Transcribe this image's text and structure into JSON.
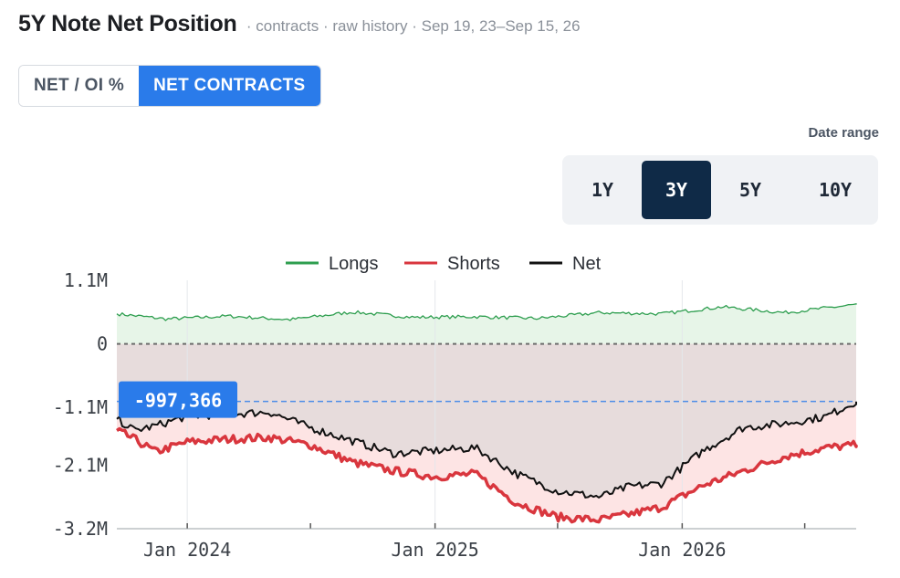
{
  "header": {
    "title": "5Y Note Net Position",
    "subtitle": "· contracts · raw history · Sep 19, 23–Sep 15, 26"
  },
  "view_toggle": {
    "options": [
      "NET / OI %",
      "NET CONTRACTS"
    ],
    "active": "NET CONTRACTS"
  },
  "date_range": {
    "label": "Date range",
    "options": [
      "1Y",
      "3Y",
      "5Y",
      "10Y"
    ],
    "active": "3Y"
  },
  "colors": {
    "longs": "#2e9e4f",
    "shorts": "#d9363e",
    "net": "#111111",
    "accent": "#2a7bea",
    "active_range": "#0f2a47"
  },
  "chart_data": {
    "type": "line",
    "legend": [
      "Longs",
      "Shorts",
      "Net"
    ],
    "y_ticks": [
      "1.1M",
      "0",
      "-1.1M",
      "-2.1M",
      "-3.2M"
    ],
    "y_tick_values": [
      1100000,
      0,
      -1100000,
      -2100000,
      -3200000
    ],
    "x_ticks": [
      "Jan 2024",
      "Jan 2025",
      "Jan 2026"
    ],
    "x_range": [
      "2023-09-19",
      "2026-09-15"
    ],
    "ylim": [
      -3200000,
      1100000
    ],
    "current_value": -997366,
    "current_label": "-997,366",
    "grid": "vertical",
    "series": [
      {
        "name": "Longs",
        "x": [
          "2023-09-19",
          "2023-12-01",
          "2024-03-01",
          "2024-06-01",
          "2024-09-01",
          "2024-12-01",
          "2025-03-01",
          "2025-06-01",
          "2025-09-01",
          "2025-12-01",
          "2026-03-01",
          "2026-06-01",
          "2026-09-15"
        ],
        "values": [
          520000,
          430000,
          480000,
          420000,
          550000,
          460000,
          470000,
          440000,
          540000,
          520000,
          640000,
          540000,
          680000
        ]
      },
      {
        "name": "Shorts",
        "x": [
          "2023-09-19",
          "2023-10-15",
          "2023-11-15",
          "2024-01-01",
          "2024-03-01",
          "2024-05-01",
          "2024-07-01",
          "2024-09-01",
          "2024-11-01",
          "2025-01-01",
          "2025-03-01",
          "2025-05-01",
          "2025-07-01",
          "2025-09-01",
          "2025-10-15",
          "2025-12-01",
          "2026-02-01",
          "2026-04-01",
          "2026-06-01",
          "2026-08-01",
          "2026-09-15"
        ],
        "values": [
          -1500000,
          -1650000,
          -1870000,
          -1700000,
          -1650000,
          -1620000,
          -1750000,
          -2050000,
          -2200000,
          -2300000,
          -2250000,
          -2750000,
          -3000000,
          -3050000,
          -2950000,
          -2830000,
          -2450000,
          -2200000,
          -1950000,
          -1800000,
          -1750000
        ]
      },
      {
        "name": "Net",
        "x": [
          "2023-09-19",
          "2023-10-15",
          "2023-11-15",
          "2024-01-01",
          "2024-03-01",
          "2024-05-01",
          "2024-07-01",
          "2024-09-01",
          "2024-11-01",
          "2025-01-01",
          "2025-03-01",
          "2025-05-01",
          "2025-07-01",
          "2025-09-01",
          "2025-10-15",
          "2025-12-01",
          "2026-02-01",
          "2026-04-01",
          "2026-06-01",
          "2026-08-01",
          "2026-09-15"
        ],
        "values": [
          -1300000,
          -1500000,
          -1420000,
          -1250000,
          -1220000,
          -1180000,
          -1450000,
          -1680000,
          -1900000,
          -1850000,
          -1800000,
          -2250000,
          -2550000,
          -2650000,
          -2470000,
          -2420000,
          -1850000,
          -1450000,
          -1380000,
          -1260000,
          -997366
        ]
      }
    ]
  }
}
